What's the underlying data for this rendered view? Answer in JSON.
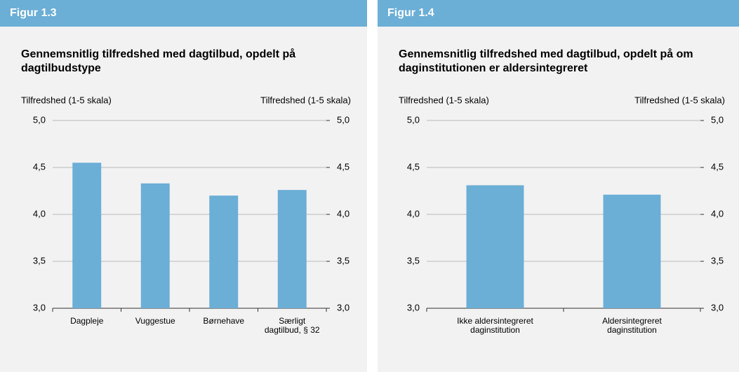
{
  "chart_data": [
    {
      "type": "bar",
      "header": "Figur 1.3",
      "title": "Gennemsnitlig tilfredshed med dagtilbud, opdelt på dagtilbudstype",
      "ylabel": "Tilfredshed (1-5 skala)",
      "y2label": "Tilfredshed (1-5 skala)",
      "categories": [
        "Dagpleje",
        "Vuggestue",
        "Børnehave",
        "Særligt dagtilbud, § 32"
      ],
      "values": [
        4.55,
        4.33,
        4.2,
        4.26
      ],
      "color": "#6baed6",
      "ylim": [
        3,
        5
      ],
      "yticks": [
        {
          "value": 3,
          "label": "3,0"
        },
        {
          "value": 3.5,
          "label": "3,5"
        },
        {
          "value": 4,
          "label": "4,0"
        },
        {
          "value": 4.5,
          "label": "4,5"
        },
        {
          "value": 5,
          "label": "5,0"
        }
      ],
      "y2lim": [
        3,
        5
      ],
      "y2ticks": [
        {
          "value": 3,
          "label": "3,0"
        },
        {
          "value": 3.5,
          "label": "3,5"
        },
        {
          "value": 4,
          "label": "4,0"
        },
        {
          "value": 4.5,
          "label": "4,5"
        },
        {
          "value": 5,
          "label": "5,0"
        }
      ],
      "grid": true
    },
    {
      "type": "bar",
      "header": "Figur 1.4",
      "title": "Gennemsnitlig tilfredshed med dagtilbud, opdelt på om daginstitutionen er aldersintegreret",
      "ylabel": "Tilfredshed (1-5 skala)",
      "y2label": "Tilfredshed (1-5 skala)",
      "categories": [
        "Ikke aldersintegreret daginstitution",
        "Aldersintegreret daginstitution"
      ],
      "values": [
        4.31,
        4.21
      ],
      "color": "#6baed6",
      "ylim": [
        3,
        5
      ],
      "yticks": [
        {
          "value": 3,
          "label": "3,0"
        },
        {
          "value": 3.5,
          "label": "3,5"
        },
        {
          "value": 4,
          "label": "4,0"
        },
        {
          "value": 4.5,
          "label": "4,5"
        },
        {
          "value": 5,
          "label": "5,0"
        }
      ],
      "y2lim": [
        3,
        5
      ],
      "y2ticks": [
        {
          "value": 3,
          "label": "3,0"
        },
        {
          "value": 3.5,
          "label": "3,5"
        },
        {
          "value": 4,
          "label": "4,0"
        },
        {
          "value": 4.5,
          "label": "4,5"
        },
        {
          "value": 5,
          "label": "5,0"
        }
      ],
      "grid": true
    }
  ]
}
